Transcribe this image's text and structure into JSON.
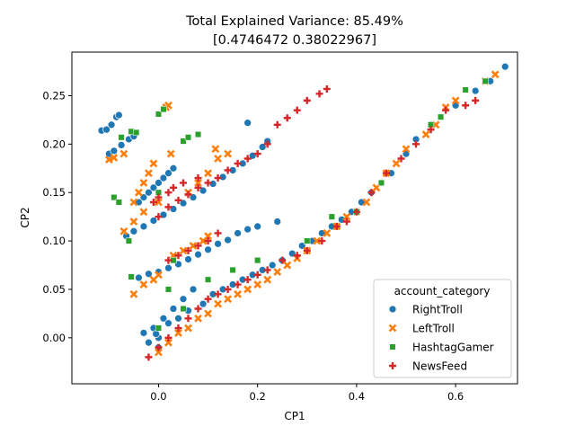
{
  "chart_data": {
    "type": "scatter",
    "title": "Total Explained Variance: 85.49%",
    "subtitle": "[0.4746472  0.38022967]",
    "xlabel": "CP1",
    "ylabel": "CP2",
    "xlim": [
      -0.175,
      0.725
    ],
    "ylim": [
      -0.0475,
      0.295
    ],
    "x_ticks": [
      0.0,
      0.2,
      0.4,
      0.6
    ],
    "x_tick_labels": [
      "0.0",
      "0.2",
      "0.4",
      "0.6"
    ],
    "y_ticks": [
      0.0,
      0.05,
      0.1,
      0.15,
      0.2,
      0.25
    ],
    "y_tick_labels": [
      "0.00",
      "0.05",
      "0.10",
      "0.15",
      "0.20",
      "0.25"
    ],
    "grid": false,
    "legend": {
      "title": "account_category",
      "placement": "lower-right"
    },
    "series": [
      {
        "name": "RightTroll",
        "marker": "circle",
        "color": "#1f77b4",
        "points": [
          [
            -0.115,
            0.214
          ],
          [
            -0.105,
            0.215
          ],
          [
            -0.095,
            0.22
          ],
          [
            -0.085,
            0.228
          ],
          [
            -0.08,
            0.23
          ],
          [
            -0.1,
            0.19
          ],
          [
            -0.09,
            0.193
          ],
          [
            -0.075,
            0.199
          ],
          [
            -0.06,
            0.205
          ],
          [
            -0.05,
            0.208
          ],
          [
            -0.04,
            0.14
          ],
          [
            -0.03,
            0.145
          ],
          [
            -0.02,
            0.15
          ],
          [
            -0.01,
            0.155
          ],
          [
            0.0,
            0.16
          ],
          [
            0.01,
            0.165
          ],
          [
            0.02,
            0.17
          ],
          [
            0.03,
            0.175
          ],
          [
            -0.065,
            0.105
          ],
          [
            -0.05,
            0.11
          ],
          [
            -0.03,
            0.115
          ],
          [
            -0.01,
            0.121
          ],
          [
            0.01,
            0.127
          ],
          [
            0.03,
            0.133
          ],
          [
            0.05,
            0.139
          ],
          [
            0.07,
            0.145
          ],
          [
            0.09,
            0.152
          ],
          [
            0.11,
            0.159
          ],
          [
            0.13,
            0.166
          ],
          [
            0.15,
            0.173
          ],
          [
            0.17,
            0.18
          ],
          [
            0.19,
            0.188
          ],
          [
            0.21,
            0.197
          ],
          [
            0.22,
            0.203
          ],
          [
            -0.04,
            0.062
          ],
          [
            -0.02,
            0.066
          ],
          [
            0.0,
            0.068
          ],
          [
            0.02,
            0.072
          ],
          [
            0.04,
            0.076
          ],
          [
            0.06,
            0.081
          ],
          [
            0.08,
            0.086
          ],
          [
            0.1,
            0.091
          ],
          [
            0.12,
            0.097
          ],
          [
            0.14,
            0.101
          ],
          [
            0.16,
            0.108
          ],
          [
            0.18,
            0.112
          ],
          [
            0.2,
            0.115
          ],
          [
            0.24,
            0.12
          ],
          [
            -0.03,
            0.005
          ],
          [
            -0.02,
            -0.005
          ],
          [
            -0.01,
            0.01
          ],
          [
            0.0,
            0.0
          ],
          [
            0.01,
            0.02
          ],
          [
            0.02,
            0.015
          ],
          [
            0.03,
            0.03
          ],
          [
            0.05,
            0.04
          ],
          [
            0.07,
            0.05
          ],
          [
            0.09,
            0.035
          ],
          [
            0.11,
            0.045
          ],
          [
            0.13,
            0.05
          ],
          [
            0.15,
            0.055
          ],
          [
            0.17,
            0.06
          ],
          [
            0.19,
            0.065
          ],
          [
            0.21,
            0.07
          ],
          [
            0.23,
            0.075
          ],
          [
            0.25,
            0.08
          ],
          [
            0.27,
            0.087
          ],
          [
            0.29,
            0.095
          ],
          [
            0.31,
            0.1
          ],
          [
            0.33,
            0.108
          ],
          [
            0.35,
            0.115
          ],
          [
            0.37,
            0.122
          ],
          [
            0.39,
            0.13
          ],
          [
            0.41,
            0.14
          ],
          [
            0.43,
            0.15
          ],
          [
            0.45,
            0.16
          ],
          [
            0.47,
            0.17
          ],
          [
            0.5,
            0.19
          ],
          [
            0.52,
            0.205
          ],
          [
            0.55,
            0.22
          ],
          [
            0.6,
            0.24
          ],
          [
            0.64,
            0.255
          ],
          [
            0.67,
            0.265
          ],
          [
            0.7,
            0.28
          ],
          [
            0.18,
            0.222
          ],
          [
            0.0,
            -0.01
          ],
          [
            -0.005,
            0.004
          ],
          [
            0.04,
            0.02
          ],
          [
            0.06,
            0.028
          ]
        ]
      },
      {
        "name": "LeftTroll",
        "marker": "x",
        "color": "#ff7f0e",
        "points": [
          [
            -0.1,
            0.184
          ],
          [
            -0.09,
            0.186
          ],
          [
            -0.07,
            0.19
          ],
          [
            0.015,
            0.238
          ],
          [
            0.02,
            0.24
          ],
          [
            0.025,
            0.19
          ],
          [
            -0.05,
            0.14
          ],
          [
            -0.04,
            0.15
          ],
          [
            -0.03,
            0.16
          ],
          [
            -0.02,
            0.17
          ],
          [
            -0.01,
            0.18
          ],
          [
            -0.07,
            0.11
          ],
          [
            -0.05,
            0.12
          ],
          [
            -0.03,
            0.13
          ],
          [
            0.0,
            0.14
          ],
          [
            0.06,
            0.15
          ],
          [
            0.08,
            0.16
          ],
          [
            0.1,
            0.17
          ],
          [
            0.12,
            0.185
          ],
          [
            0.115,
            0.195
          ],
          [
            0.14,
            0.19
          ],
          [
            -0.05,
            0.045
          ],
          [
            -0.03,
            0.055
          ],
          [
            -0.01,
            0.06
          ],
          [
            0.0,
            0.065
          ],
          [
            0.03,
            0.085
          ],
          [
            0.05,
            0.09
          ],
          [
            0.07,
            0.095
          ],
          [
            0.09,
            0.1
          ],
          [
            0.1,
            0.105
          ],
          [
            0.0,
            -0.015
          ],
          [
            0.02,
            -0.005
          ],
          [
            0.04,
            0.005
          ],
          [
            0.06,
            0.01
          ],
          [
            0.08,
            0.02
          ],
          [
            0.1,
            0.025
          ],
          [
            0.12,
            0.035
          ],
          [
            0.14,
            0.04
          ],
          [
            0.16,
            0.045
          ],
          [
            0.18,
            0.05
          ],
          [
            0.2,
            0.055
          ],
          [
            0.22,
            0.06
          ],
          [
            0.24,
            0.068
          ],
          [
            0.26,
            0.075
          ],
          [
            0.28,
            0.082
          ],
          [
            0.3,
            0.09
          ],
          [
            0.32,
            0.1
          ],
          [
            0.34,
            0.108
          ],
          [
            0.36,
            0.115
          ],
          [
            0.38,
            0.125
          ],
          [
            0.4,
            0.13
          ],
          [
            0.42,
            0.14
          ],
          [
            0.44,
            0.155
          ],
          [
            0.46,
            0.17
          ],
          [
            0.48,
            0.18
          ],
          [
            0.5,
            0.195
          ],
          [
            0.54,
            0.21
          ],
          [
            0.56,
            0.22
          ],
          [
            0.58,
            0.238
          ],
          [
            0.6,
            0.245
          ],
          [
            0.66,
            0.265
          ],
          [
            0.68,
            0.272
          ]
        ]
      },
      {
        "name": "HashtagGamer",
        "marker": "square",
        "color": "#2ca02c",
        "points": [
          [
            -0.075,
            0.207
          ],
          [
            -0.055,
            0.213
          ],
          [
            -0.045,
            0.212
          ],
          [
            0.0,
            0.231
          ],
          [
            0.01,
            0.236
          ],
          [
            0.05,
            0.203
          ],
          [
            0.06,
            0.207
          ],
          [
            0.08,
            0.21
          ],
          [
            -0.09,
            0.145
          ],
          [
            -0.08,
            0.14
          ],
          [
            0.0,
            0.15
          ],
          [
            -0.06,
            0.1
          ],
          [
            -0.055,
            0.063
          ],
          [
            0.03,
            0.08
          ],
          [
            0.02,
            0.05
          ],
          [
            0.0,
            0.01
          ],
          [
            0.05,
            0.03
          ],
          [
            0.1,
            0.06
          ],
          [
            0.15,
            0.07
          ],
          [
            0.2,
            0.08
          ],
          [
            0.3,
            0.1
          ],
          [
            0.35,
            0.125
          ],
          [
            0.4,
            0.13
          ],
          [
            0.45,
            0.16
          ],
          [
            0.55,
            0.22
          ],
          [
            0.57,
            0.228
          ],
          [
            0.62,
            0.256
          ],
          [
            0.66,
            0.265
          ]
        ]
      },
      {
        "name": "NewsFeed",
        "marker": "plus",
        "color": "#d62728",
        "points": [
          [
            0.34,
            0.257
          ],
          [
            0.325,
            0.252
          ],
          [
            0.3,
            0.245
          ],
          [
            0.28,
            0.235
          ],
          [
            0.26,
            0.227
          ],
          [
            0.24,
            0.22
          ],
          [
            0.22,
            0.2
          ],
          [
            0.2,
            0.19
          ],
          [
            0.18,
            0.185
          ],
          [
            0.16,
            0.18
          ],
          [
            0.14,
            0.173
          ],
          [
            0.12,
            0.165
          ],
          [
            0.1,
            0.16
          ],
          [
            0.08,
            0.155
          ],
          [
            0.06,
            0.148
          ],
          [
            0.04,
            0.142
          ],
          [
            0.02,
            0.135
          ],
          [
            0.0,
            0.125
          ],
          [
            -0.01,
            0.14
          ],
          [
            0.0,
            0.145
          ],
          [
            0.02,
            0.15
          ],
          [
            0.03,
            0.155
          ],
          [
            0.05,
            0.16
          ],
          [
            0.08,
            0.165
          ],
          [
            0.06,
            0.09
          ],
          [
            0.08,
            0.095
          ],
          [
            0.1,
            0.1
          ],
          [
            0.12,
            0.108
          ],
          [
            0.04,
            0.085
          ],
          [
            0.02,
            0.08
          ],
          [
            -0.02,
            -0.02
          ],
          [
            0.0,
            -0.01
          ],
          [
            0.02,
            0.0
          ],
          [
            0.04,
            0.01
          ],
          [
            0.06,
            0.02
          ],
          [
            0.08,
            0.03
          ],
          [
            0.1,
            0.04
          ],
          [
            0.12,
            0.045
          ],
          [
            0.14,
            0.05
          ],
          [
            0.16,
            0.055
          ],
          [
            0.18,
            0.06
          ],
          [
            0.2,
            0.065
          ],
          [
            0.22,
            0.07
          ],
          [
            0.25,
            0.08
          ],
          [
            0.28,
            0.085
          ],
          [
            0.3,
            0.09
          ],
          [
            0.33,
            0.1
          ],
          [
            0.36,
            0.115
          ],
          [
            0.38,
            0.12
          ],
          [
            0.4,
            0.13
          ],
          [
            0.43,
            0.15
          ],
          [
            0.46,
            0.17
          ],
          [
            0.49,
            0.185
          ],
          [
            0.52,
            0.2
          ],
          [
            0.55,
            0.215
          ],
          [
            0.58,
            0.235
          ],
          [
            0.62,
            0.24
          ],
          [
            0.64,
            0.245
          ]
        ]
      }
    ]
  }
}
